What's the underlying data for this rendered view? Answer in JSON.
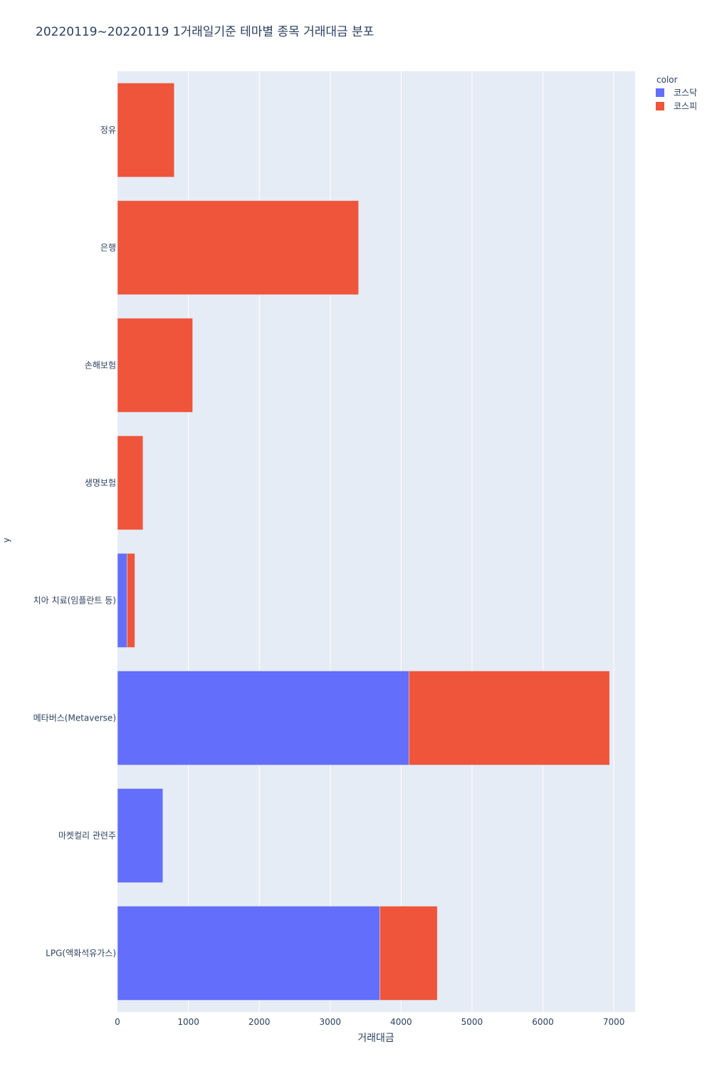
{
  "chart_data": {
    "type": "bar",
    "orientation": "horizontal",
    "barmode": "stack",
    "title": "20220119~20220119 1거래일기준 테마별 종목 거래대금 분포",
    "xlabel": "거래대금",
    "ylabel": "y",
    "xlim": [
      0,
      7300
    ],
    "x_ticks": [
      0,
      1000,
      2000,
      3000,
      4000,
      5000,
      6000,
      7000
    ],
    "x_tick_labels": [
      "0",
      "1000",
      "2000",
      "3000",
      "4000",
      "5000",
      "6000",
      "7000"
    ],
    "grid": true,
    "legend_title": "color",
    "legend_position": "top-right",
    "categories": [
      "정유",
      "은행",
      "손해보험",
      "생명보험",
      "치아 치료(임플란트 등)",
      "메타버스(Metaverse)",
      "마켓컬리 관련주",
      "LPG(액화석유가스)"
    ],
    "series": [
      {
        "name": "코스닥",
        "color": "#636efa",
        "values": [
          0,
          0,
          0,
          0,
          135,
          4110,
          640,
          3700
        ]
      },
      {
        "name": "코스피",
        "color": "#ef553b",
        "values": [
          800,
          3400,
          1060,
          360,
          110,
          2830,
          0,
          810
        ]
      }
    ]
  }
}
